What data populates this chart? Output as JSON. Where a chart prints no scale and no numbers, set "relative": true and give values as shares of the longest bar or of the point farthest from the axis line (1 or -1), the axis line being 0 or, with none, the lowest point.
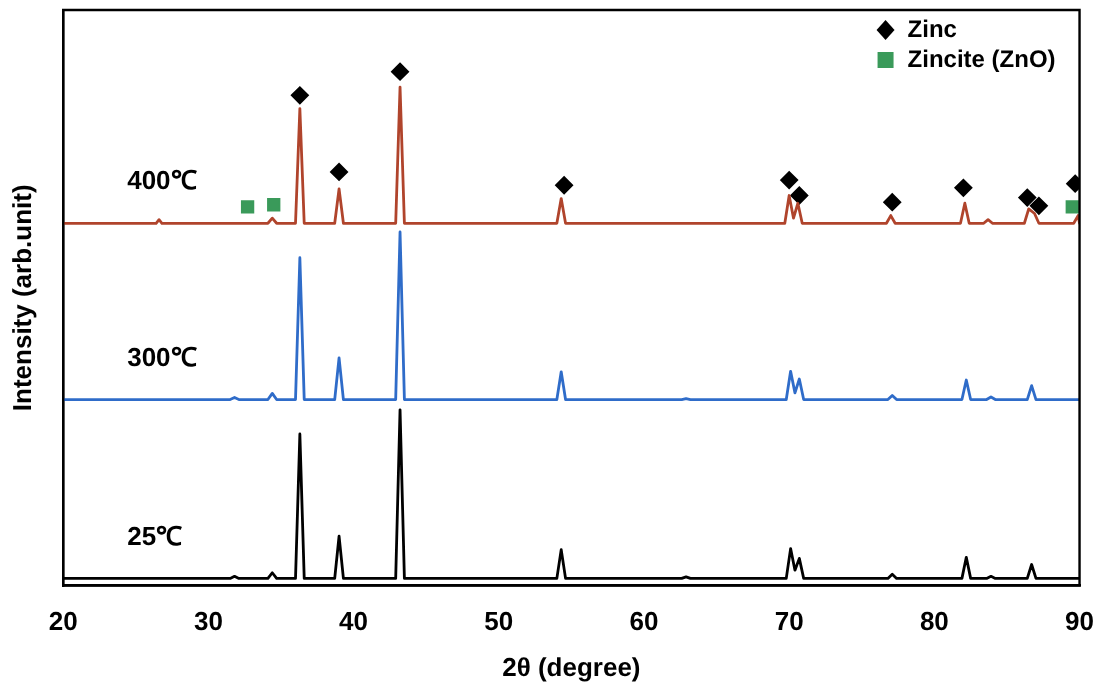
{
  "chart_data": {
    "type": "line",
    "relative": true,
    "xlabel": "2θ (degree)",
    "ylabel": "Intensity (arb.unit)",
    "xlim": [
      20,
      90
    ],
    "xticks": [
      20,
      30,
      40,
      50,
      60,
      70,
      80,
      90
    ],
    "grid": false,
    "legend": "top right",
    "series": [
      {
        "name": "400℃",
        "color": "#b0442c",
        "marker": "none",
        "x": [
          20,
          26.4,
          26.6,
          26.8,
          34.1,
          34.4,
          34.7,
          36.0,
          36.3,
          36.6,
          38.7,
          39.0,
          39.3,
          42.9,
          43.2,
          43.5,
          54.0,
          54.3,
          54.6,
          69.7,
          70.0,
          70.3,
          70.6,
          70.9,
          76.7,
          77.0,
          77.3,
          81.8,
          82.1,
          82.4,
          83.4,
          83.7,
          84.0,
          86.2,
          86.5,
          86.9,
          87.2,
          89.6,
          89.9,
          90
        ],
        "values": [
          0.705,
          0.705,
          0.712,
          0.705,
          0.705,
          0.715,
          0.705,
          0.705,
          0.928,
          0.705,
          0.705,
          0.772,
          0.705,
          0.705,
          0.97,
          0.705,
          0.705,
          0.753,
          0.705,
          0.705,
          0.759,
          0.715,
          0.744,
          0.705,
          0.705,
          0.72,
          0.705,
          0.705,
          0.744,
          0.705,
          0.705,
          0.712,
          0.705,
          0.705,
          0.733,
          0.724,
          0.705,
          0.705,
          0.72,
          0.705
        ]
      },
      {
        "name": "300℃",
        "color": "#2f6cc9",
        "marker": "none",
        "x": [
          20,
          31.5,
          31.8,
          32.1,
          34.1,
          34.4,
          34.7,
          36.0,
          36.3,
          36.6,
          38.7,
          39.0,
          39.3,
          42.9,
          43.2,
          43.5,
          54.0,
          54.3,
          54.6,
          62.6,
          62.9,
          63.2,
          69.8,
          70.1,
          70.4,
          70.7,
          71.0,
          76.8,
          77.1,
          77.4,
          81.9,
          82.2,
          82.5,
          83.6,
          83.9,
          84.2,
          86.4,
          86.7,
          87.0,
          90
        ],
        "values": [
          0.362,
          0.362,
          0.366,
          0.362,
          0.362,
          0.374,
          0.362,
          0.362,
          0.638,
          0.362,
          0.362,
          0.443,
          0.362,
          0.362,
          0.688,
          0.362,
          0.362,
          0.416,
          0.362,
          0.362,
          0.364,
          0.362,
          0.362,
          0.417,
          0.375,
          0.402,
          0.362,
          0.362,
          0.37,
          0.362,
          0.362,
          0.4,
          0.362,
          0.362,
          0.367,
          0.362,
          0.362,
          0.389,
          0.362,
          0.362
        ]
      },
      {
        "name": "25℃",
        "color": "#000000",
        "marker": "none",
        "x": [
          20,
          31.5,
          31.8,
          32.1,
          34.1,
          34.4,
          34.7,
          36.0,
          36.3,
          36.6,
          38.7,
          39.0,
          39.3,
          42.9,
          43.2,
          43.5,
          54.0,
          54.3,
          54.6,
          62.6,
          62.9,
          63.2,
          69.8,
          70.1,
          70.4,
          70.7,
          71.0,
          76.8,
          77.1,
          77.4,
          81.9,
          82.2,
          82.5,
          83.6,
          83.9,
          84.2,
          86.4,
          86.7,
          87.0,
          90
        ],
        "values": [
          0.014,
          0.014,
          0.018,
          0.014,
          0.014,
          0.025,
          0.014,
          0.014,
          0.295,
          0.014,
          0.014,
          0.096,
          0.014,
          0.014,
          0.342,
          0.014,
          0.014,
          0.07,
          0.014,
          0.014,
          0.017,
          0.014,
          0.014,
          0.072,
          0.03,
          0.053,
          0.014,
          0.014,
          0.022,
          0.014,
          0.014,
          0.055,
          0.014,
          0.014,
          0.018,
          0.014,
          0.014,
          0.041,
          0.014,
          0.014
        ]
      },
      {
        "name": "Zinc",
        "type": "scatter",
        "color": "#000000",
        "marker": "diamond",
        "x": [
          36.3,
          39.0,
          43.2,
          54.5,
          70.0,
          70.7,
          77.1,
          82.0,
          86.4,
          87.2,
          89.7
        ],
        "values": [
          0.954,
          0.805,
          1,
          0.779,
          0.789,
          0.759,
          0.746,
          0.774,
          0.755,
          0.739,
          0.782
        ]
      },
      {
        "name": "Zincite (ZnO)",
        "type": "scatter",
        "color": "#3a9a5a",
        "marker": "square",
        "x": [
          32.7,
          34.5,
          89.5
        ],
        "values": [
          0.737,
          0.741,
          0.737
        ]
      }
    ]
  }
}
